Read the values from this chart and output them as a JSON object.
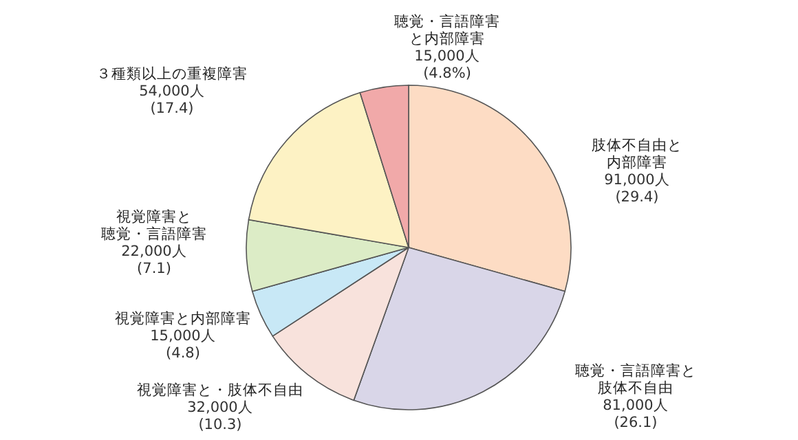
{
  "chart_data": {
    "type": "pie",
    "categories": [
      "肢体不自由と内部障害",
      "聴覚・言語障害と肢体不自由",
      "視覚障害と・肢体不自由",
      "視覚障害と内部障害",
      "視覚障害と聴覚・言語障害",
      "３種類以上の重複障害",
      "聴覚・言語障害と内部障害"
    ],
    "values": [
      91000,
      81000,
      32000,
      15000,
      22000,
      54000,
      15000
    ],
    "value_labels": [
      "91,000人 (29.4)",
      "81,000人 (26.1)",
      "32,000人 (10.3)",
      "15,000人 (4.8)",
      "22,000人 (7.1)",
      "54,000人 (17.4)",
      "15,000人 (4.8%)"
    ],
    "colors": [
      "#fddcc4",
      "#d9d6e8",
      "#f8e2dc",
      "#c8e8f6",
      "#dcecc6",
      "#fdf2c4",
      "#f1a9a9"
    ]
  }
}
